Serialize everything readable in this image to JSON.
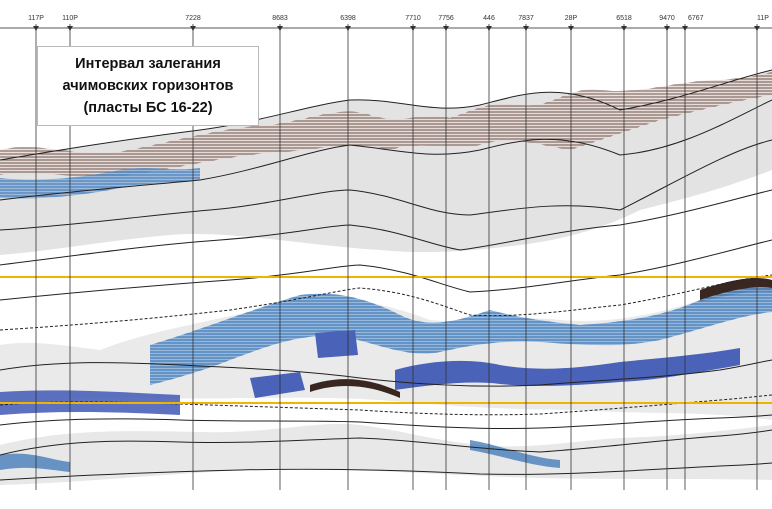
{
  "title_box": {
    "lines": [
      "Интервал залегания",
      "ачимовских горизонтов",
      "(пласты БС 16-22)"
    ]
  },
  "wells": [
    "117P",
    "110P",
    "7228",
    "8683",
    "6398",
    "7710",
    "7756",
    "446",
    "7837",
    "28P",
    "6518",
    "9470",
    "6767",
    "11P"
  ],
  "colors": {
    "marker_lines": "#f0b400",
    "sand_blue": "#2f6fb5",
    "shale_brown": "#5a3a2e",
    "fill_gray": "#d9d9d9",
    "horizon": "#222222"
  }
}
